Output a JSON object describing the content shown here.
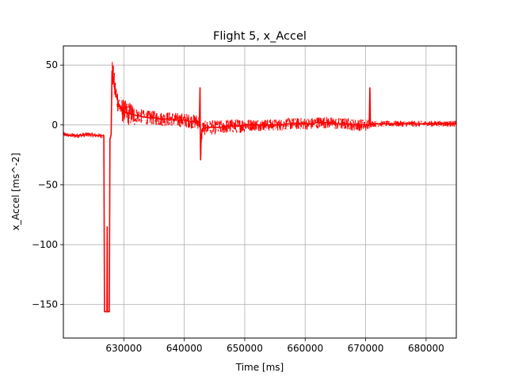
{
  "chart_data": {
    "type": "line",
    "title": "Flight 5, x_Accel",
    "xlabel": "Time [ms]",
    "ylabel": "x_Accel [ms^-2]",
    "xlim": [
      620000,
      685000
    ],
    "ylim": [
      -178,
      66
    ],
    "xticks": [
      630000,
      640000,
      650000,
      660000,
      670000,
      680000
    ],
    "xtick_labels": [
      "630000",
      "640000",
      "650000",
      "660000",
      "670000",
      "680000"
    ],
    "yticks": [
      50,
      0,
      -50,
      -100,
      -150
    ],
    "ytick_labels": [
      "50",
      "0",
      "−50",
      "−100",
      "−150"
    ],
    "grid": true,
    "series": [
      {
        "color": "#ff0000",
        "points": [
          [
            620000,
            -8
          ],
          [
            622000,
            -9
          ],
          [
            624000,
            -8
          ],
          [
            626000,
            -9
          ],
          [
            626700,
            -9
          ],
          [
            626800,
            -156
          ],
          [
            627200,
            -156
          ],
          [
            627250,
            -85
          ],
          [
            627300,
            -156
          ],
          [
            627600,
            -156
          ],
          [
            627700,
            -12
          ],
          [
            627900,
            -8
          ],
          [
            628050,
            45
          ],
          [
            628300,
            38
          ],
          [
            628500,
            30
          ],
          [
            628700,
            26
          ],
          [
            628900,
            22
          ],
          [
            629100,
            18
          ],
          [
            629400,
            15
          ],
          [
            629800,
            12
          ],
          [
            630400,
            10
          ],
          [
            631200,
            9
          ],
          [
            632000,
            8
          ],
          [
            633000,
            7
          ],
          [
            634000,
            6
          ],
          [
            635000,
            6
          ],
          [
            636000,
            5
          ],
          [
            637000,
            5
          ],
          [
            638000,
            5
          ],
          [
            639000,
            4
          ],
          [
            640000,
            4
          ],
          [
            641000,
            3
          ],
          [
            642000,
            3
          ],
          [
            642500,
            2
          ],
          [
            642600,
            31
          ],
          [
            642650,
            -3
          ],
          [
            642700,
            -29
          ],
          [
            642800,
            -10
          ],
          [
            643000,
            -3
          ],
          [
            644000,
            -2
          ],
          [
            645000,
            -2
          ],
          [
            646000,
            -2
          ],
          [
            647000,
            -1
          ],
          [
            648000,
            -1
          ],
          [
            649000,
            -1
          ],
          [
            650000,
            0
          ],
          [
            651000,
            0
          ],
          [
            652000,
            0
          ],
          [
            653000,
            0
          ],
          [
            654000,
            0
          ],
          [
            655000,
            0
          ],
          [
            656000,
            0
          ],
          [
            657000,
            1
          ],
          [
            658000,
            1
          ],
          [
            659000,
            1
          ],
          [
            660000,
            1
          ],
          [
            661000,
            1
          ],
          [
            662000,
            2
          ],
          [
            663000,
            2
          ],
          [
            664000,
            2
          ],
          [
            665000,
            1
          ],
          [
            666000,
            1
          ],
          [
            667000,
            1
          ],
          [
            668000,
            0
          ],
          [
            669000,
            0
          ],
          [
            670000,
            0
          ],
          [
            670600,
            0
          ],
          [
            670700,
            31
          ],
          [
            670800,
            0
          ],
          [
            671000,
            1
          ],
          [
            672000,
            1
          ],
          [
            674000,
            1
          ],
          [
            676000,
            1
          ],
          [
            678000,
            1
          ],
          [
            680000,
            1
          ],
          [
            682000,
            1
          ],
          [
            684000,
            1
          ],
          [
            685000,
            1
          ]
        ]
      }
    ]
  }
}
